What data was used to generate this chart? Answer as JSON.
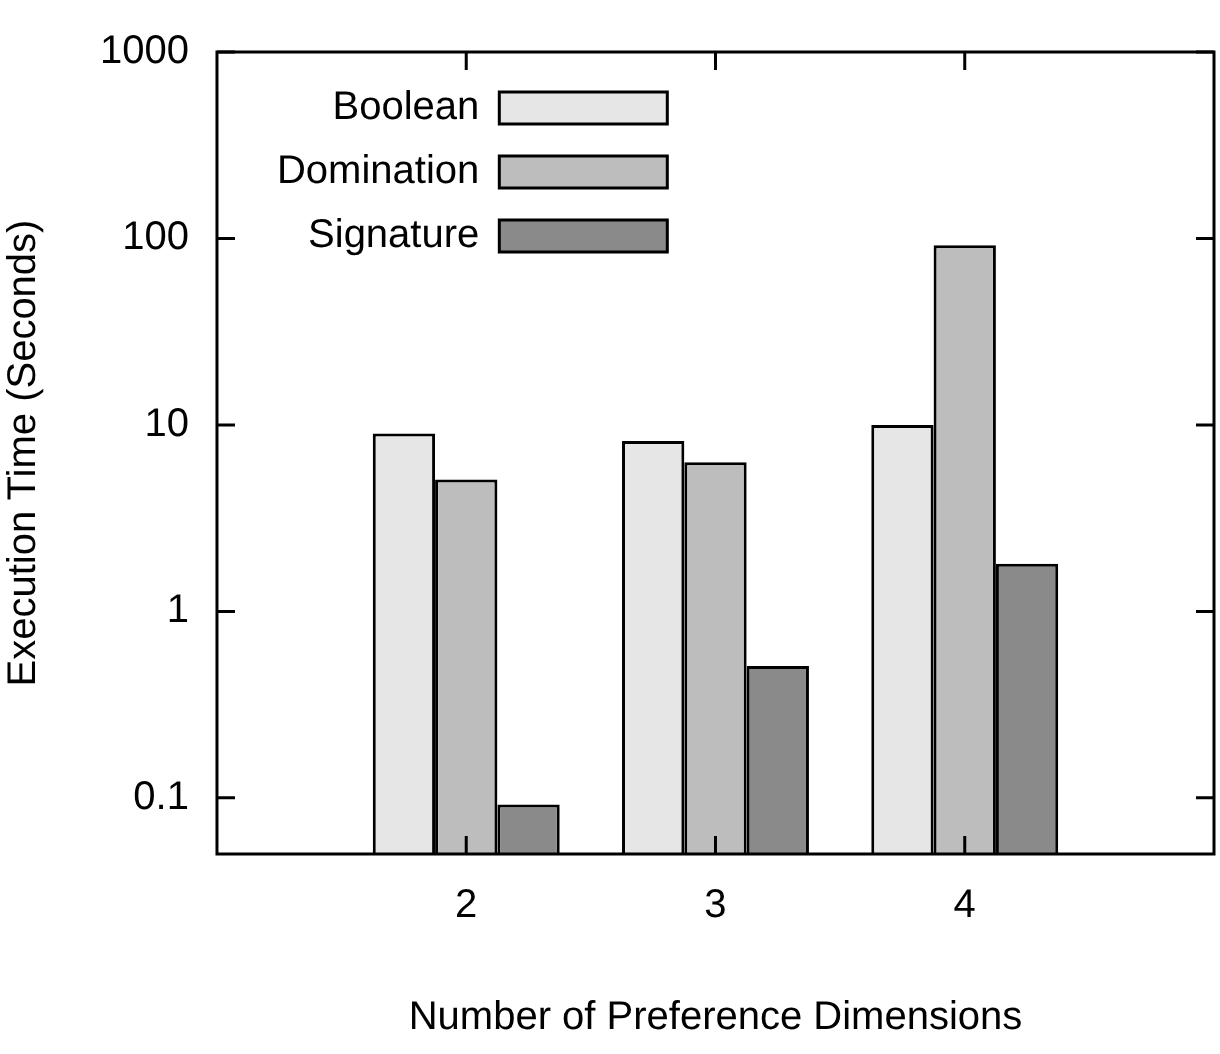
{
  "chart_data": {
    "type": "bar",
    "xlabel": "Number of Preference Dimensions",
    "ylabel": "Execution Time (Seconds)",
    "x": [
      2,
      3,
      4
    ],
    "xlim": [
      1,
      5
    ],
    "xticks": [
      2,
      3,
      4
    ],
    "ylim": [
      0.05,
      1000
    ],
    "yticks": [
      0.1,
      1,
      10,
      100,
      1000
    ],
    "log": "y",
    "grid": false,
    "legend": "top left",
    "series": [
      {
        "name": "Boolean",
        "color": "#e6e6e6",
        "values": [
          9.0,
          8.2,
          10
        ]
      },
      {
        "name": "Domination",
        "color": "#bdbdbd",
        "values": [
          5.1,
          6.3,
          92
        ]
      },
      {
        "name": "Signature",
        "color": "#8a8a8a",
        "values": [
          0.092,
          0.51,
          1.8
        ]
      }
    ]
  }
}
